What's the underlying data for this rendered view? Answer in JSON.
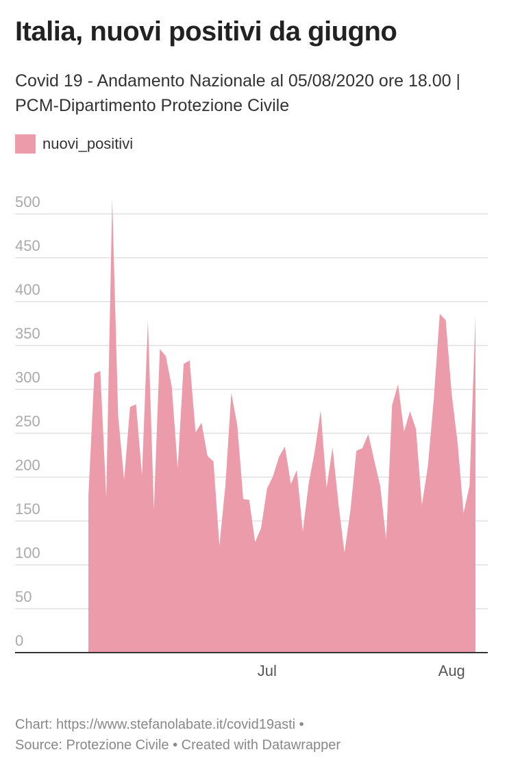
{
  "chart_data": {
    "type": "area",
    "title": "Italia, nuovi positivi da giugno",
    "subtitle": "Covid 19 - Andamento Nazionale al 05/08/2020 ore 18.00 | PCM-Dipartimento Protezione Civile",
    "footer": [
      "Chart: https://www.stefanolabate.it/covid19asti •",
      "Source: Protezione Civile • Created with Datawrapper"
    ],
    "categories": [
      null,
      null,
      null,
      null,
      null,
      null,
      null,
      null,
      null,
      null,
      null,
      null,
      null,
      null,
      null,
      null,
      null,
      null,
      null,
      null,
      null,
      null,
      null,
      null,
      null,
      null,
      null,
      null,
      null,
      null,
      "Jul",
      null,
      null,
      null,
      null,
      null,
      null,
      null,
      null,
      null,
      null,
      null,
      null,
      null,
      null,
      null,
      null,
      null,
      null,
      null,
      null,
      null,
      null,
      null,
      null,
      null,
      null,
      null,
      null,
      null,
      null,
      "Aug",
      null,
      null,
      null,
      null
    ],
    "series": [
      {
        "name": "nuovi_positivi",
        "color": "#eb9ba9",
        "values": [
          178,
          318,
          321,
          177,
          518,
          270,
          197,
          280,
          283,
          202,
          379,
          163,
          346,
          338,
          303,
          210,
          329,
          333,
          251,
          262,
          224,
          218,
          122,
          190,
          296,
          259,
          175,
          174,
          126,
          142,
          187,
          201,
          223,
          235,
          192,
          208,
          138,
          193,
          229,
          276,
          188,
          234,
          169,
          114,
          162,
          230,
          233,
          249,
          219,
          190,
          129,
          282,
          306,
          252,
          275,
          255,
          168,
          212,
          289,
          386,
          379,
          295,
          239,
          159,
          190,
          384
        ]
      }
    ],
    "ylim": [
      0,
      500
    ],
    "yticks": [
      0,
      50,
      100,
      150,
      200,
      250,
      300,
      350,
      400,
      450,
      500
    ],
    "grid": true
  }
}
